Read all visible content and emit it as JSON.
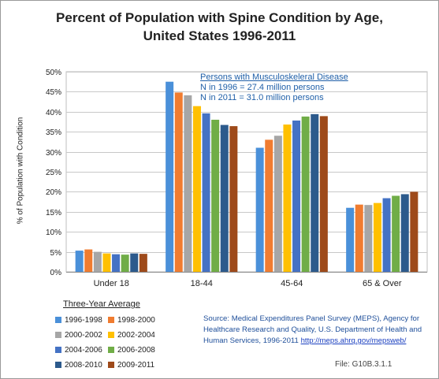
{
  "title_line1": "Percent of Population with Spine Condition by Age,",
  "title_line2": "United States 1996-2011",
  "annotation": {
    "heading": "Persons with Musculoskeleral Disease",
    "line1": "N  in 1996 = 27.4 million persons",
    "line2": "N  in 2011 = 31.0 million persons"
  },
  "legend_title": "Three-Year  Average",
  "source": {
    "text": "Source: Medical Expenditures Panel Survey (MEPS), Agency for Healthcare Research and Quality, U.S. Department of Health and Human Services, 1996-2011",
    "link": "http://meps.ahrq.gov/mepsweb/"
  },
  "file_id": "File: G10B.3.1.1",
  "chart_data": {
    "type": "bar",
    "ylabel": "% of Population with Condition",
    "ylim": [
      0,
      50
    ],
    "yticks": [
      "0%",
      "5%",
      "10%",
      "15%",
      "20%",
      "25%",
      "30%",
      "35%",
      "40%",
      "45%",
      "50%"
    ],
    "grid": true,
    "legend_position": "bottom-left",
    "categories": [
      "Under 18",
      "18-44",
      "45-64",
      "65 & Over"
    ],
    "series": [
      {
        "name": "1996-1998",
        "color": "#4a90d9",
        "values": [
          5.3,
          47.5,
          31.0,
          16.0
        ]
      },
      {
        "name": "1998-2000",
        "color": "#f07c30",
        "values": [
          5.6,
          44.8,
          33.0,
          16.8
        ]
      },
      {
        "name": "2000-2002",
        "color": "#a6a6a6",
        "values": [
          5.0,
          44.1,
          34.0,
          16.7
        ]
      },
      {
        "name": "2002-2004",
        "color": "#ffc000",
        "values": [
          4.6,
          41.4,
          36.8,
          17.2
        ]
      },
      {
        "name": "2004-2006",
        "color": "#4472c4",
        "values": [
          4.4,
          39.6,
          37.8,
          18.4
        ]
      },
      {
        "name": "2006-2008",
        "color": "#70ad47",
        "values": [
          4.3,
          38.0,
          38.8,
          19.0
        ]
      },
      {
        "name": "2008-2010",
        "color": "#2c5a8c",
        "values": [
          4.6,
          36.7,
          39.4,
          19.4
        ]
      },
      {
        "name": "2009-2011",
        "color": "#9e4a1a",
        "values": [
          4.5,
          36.4,
          38.9,
          20.0
        ]
      }
    ]
  }
}
